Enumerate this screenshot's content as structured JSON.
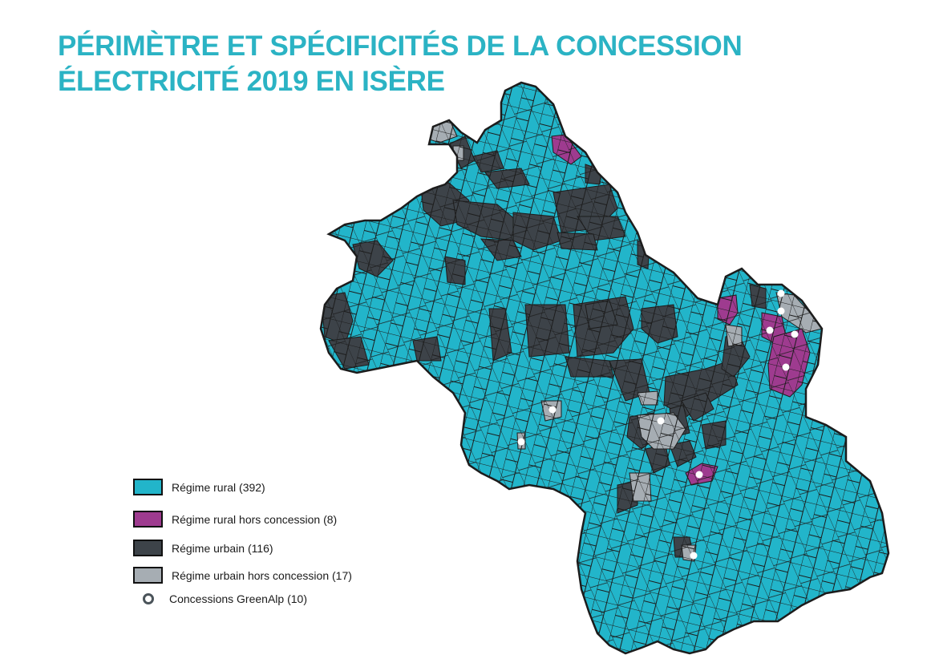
{
  "title": {
    "line1": "PÉRIMÈTRE ET SPÉCIFICITÉS DE LA CONCESSION",
    "line2": "ÉLECTRICITÉ 2019 EN ISÈRE"
  },
  "colors": {
    "title": "#2bb3c4",
    "rural": "#22b5ca",
    "rural_hors_concession": "#9e3b8f",
    "urbain": "#3d4349",
    "urbain_hors_concession": "#a6adb3",
    "greenalp_marker": "#ffffff",
    "border": "#1c1c1c"
  },
  "legend": {
    "rural": {
      "label": "Régime rural",
      "count": "(392)",
      "color": "#22b5ca"
    },
    "rural_hors_concession": {
      "label": "Régime rural hors concession",
      "count": "(8)",
      "color": "#9e3b8f"
    },
    "urbain": {
      "label": "Régime urbain",
      "count": "(116)",
      "color": "#3d4349"
    },
    "urbain_hors_concession": {
      "label": "Régime urbain hors concession",
      "count": "(17)",
      "color": "#a6adb3"
    },
    "greenalp": {
      "label": "Concessions GreenAlp",
      "count": "(10)",
      "icon": "ring-icon"
    }
  }
}
